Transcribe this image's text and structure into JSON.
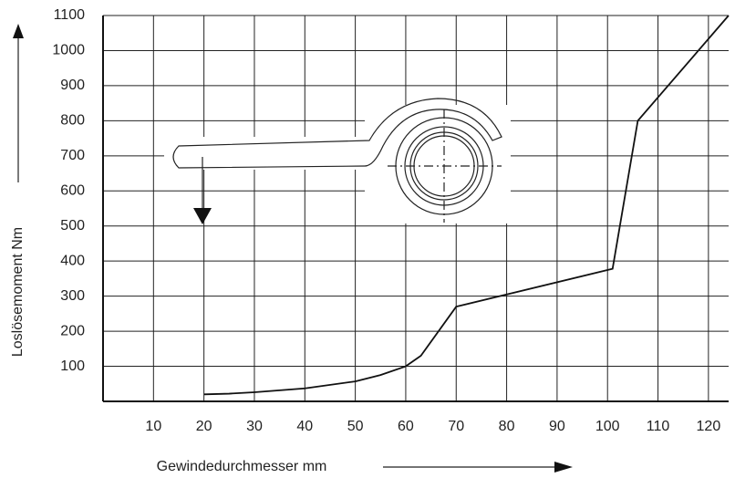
{
  "chart_data": {
    "type": "line",
    "x_label": "Gewindedurchmesser mm",
    "y_label": "Loslösemoment Nm",
    "series": [
      {
        "color": "#111111",
        "x": [
          20,
          25,
          30,
          40,
          50,
          55,
          60,
          63,
          70,
          101,
          106,
          124
        ],
        "values": [
          20,
          22,
          26,
          37,
          57,
          75,
          100,
          130,
          270,
          378,
          800,
          1100
        ]
      }
    ],
    "xlim": [
      0,
      124
    ],
    "ylim": [
      0,
      1100
    ],
    "xticks": [
      10,
      20,
      30,
      40,
      50,
      60,
      70,
      80,
      90,
      100,
      110,
      120
    ],
    "yticks": [
      100,
      200,
      300,
      400,
      500,
      600,
      700,
      800,
      900,
      1000,
      1100
    ],
    "grid": true
  }
}
